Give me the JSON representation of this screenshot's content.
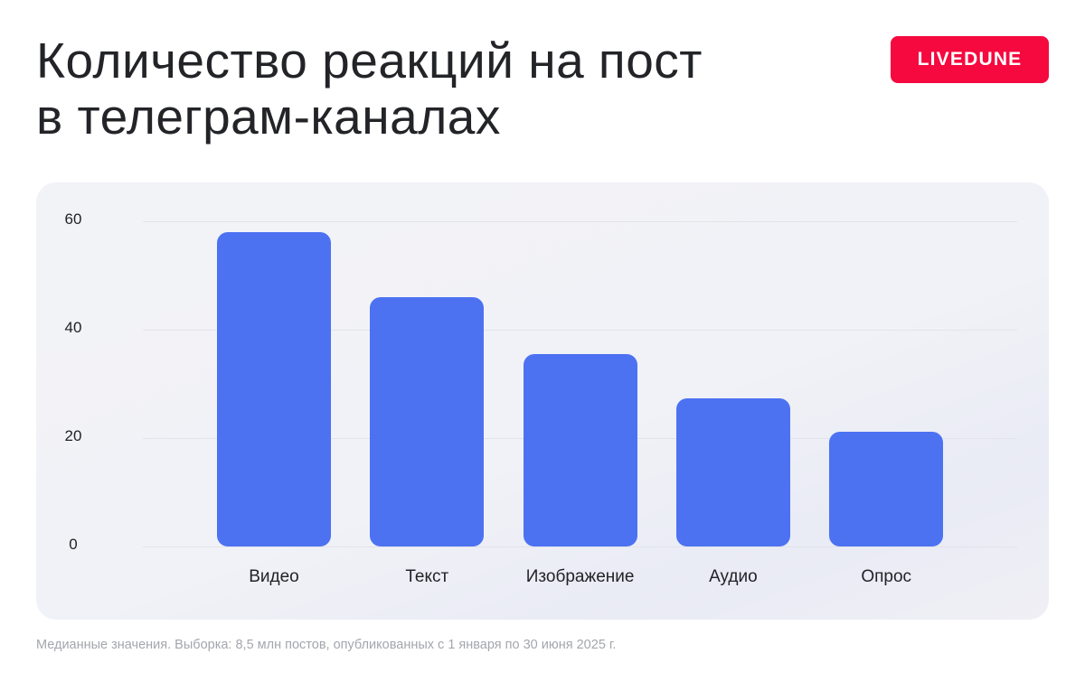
{
  "header": {
    "title_line1": "Количество реакций на пост",
    "title_line2": "в телеграм-каналах",
    "brand_badge": "LIVEDUNE"
  },
  "colors": {
    "bar": "#4C72F2",
    "brand": "#F5093F",
    "card_background": "#F2F3F7"
  },
  "footnote": "Медианные значения. Выборка: 8,5 млн постов, опубликованных с 1 января по 30 июня 2025 г.",
  "chart_data": {
    "type": "bar",
    "title": "Количество реакций на пост в телеграм-каналах",
    "xlabel": "",
    "ylabel": "",
    "categories": [
      "Видео",
      "Текст",
      "Изображение",
      "Аудио",
      "Опрос"
    ],
    "values": [
      58,
      46,
      35.5,
      27.3,
      21.2
    ],
    "y_ticks": [
      "0",
      "20",
      "40",
      "60"
    ],
    "ylim": [
      0,
      60
    ],
    "grid": true,
    "legend": null
  }
}
